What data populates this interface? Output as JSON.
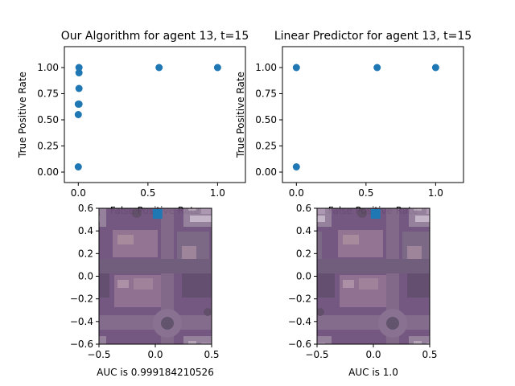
{
  "colors": {
    "marker": "#1f77b4",
    "aerial_tint": "#6e4f7a"
  },
  "chart_data": [
    {
      "type": "scatter",
      "title": "Our Algorithm for agent 13, t=15",
      "xlabel": "False Positive Rate",
      "ylabel": "True Positive Rate",
      "xlim": [
        -0.1,
        1.2
      ],
      "ylim": [
        -0.1,
        1.2
      ],
      "xticks": [
        "0.0",
        "0.5",
        "1.0"
      ],
      "xtick_values": [
        0.0,
        0.5,
        1.0
      ],
      "yticks": [
        "0.00",
        "0.25",
        "0.50",
        "0.75",
        "1.00"
      ],
      "ytick_values": [
        0.0,
        0.25,
        0.5,
        0.75,
        1.0
      ],
      "grid": false,
      "points": [
        {
          "x": 0.0,
          "y": 0.05
        },
        {
          "x": 0.0,
          "y": 0.55
        },
        {
          "x": 0.0,
          "y": 0.65
        },
        {
          "x": 0.005,
          "y": 0.65
        },
        {
          "x": 0.005,
          "y": 0.8
        },
        {
          "x": 0.005,
          "y": 0.95
        },
        {
          "x": 0.005,
          "y": 1.0
        },
        {
          "x": 0.58,
          "y": 1.0
        },
        {
          "x": 1.0,
          "y": 1.0
        }
      ]
    },
    {
      "type": "scatter",
      "title": "Linear Predictor for agent 13, t=15",
      "xlabel": "False Positive Rate",
      "ylabel": "True Positive Rate",
      "xlim": [
        -0.1,
        1.2
      ],
      "ylim": [
        -0.1,
        1.2
      ],
      "xticks": [
        "0.0",
        "0.5",
        "1.0"
      ],
      "xtick_values": [
        0.0,
        0.5,
        1.0
      ],
      "yticks": [
        "0.00",
        "0.25",
        "0.50",
        "0.75",
        "1.00"
      ],
      "ytick_values": [
        0.0,
        0.25,
        0.5,
        0.75,
        1.0
      ],
      "grid": false,
      "points": [
        {
          "x": 0.0,
          "y": 0.05
        },
        {
          "x": 0.0,
          "y": 1.0
        },
        {
          "x": 0.58,
          "y": 1.0
        },
        {
          "x": 1.0,
          "y": 1.0
        }
      ]
    },
    {
      "type": "image",
      "xlabel": "AUC is 0.999184210526",
      "xlim": [
        -0.5,
        0.5
      ],
      "ylim": [
        -0.6,
        0.6
      ],
      "xticks": [
        "−0.5",
        "0.0",
        "0.5"
      ],
      "xtick_values": [
        -0.5,
        0.0,
        0.5
      ],
      "yticks": [
        "−0.6",
        "−0.4",
        "−0.2",
        "0.0",
        "0.2",
        "0.4",
        "0.6"
      ],
      "ytick_values": [
        -0.6,
        -0.4,
        -0.2,
        0.0,
        0.2,
        0.4,
        0.6
      ],
      "marker": {
        "x": 0.02,
        "y": 0.55
      }
    },
    {
      "type": "image",
      "xlabel": "AUC is 1.0",
      "xlim": [
        -0.5,
        0.5
      ],
      "ylim": [
        -0.6,
        0.6
      ],
      "xticks": [
        "−0.5",
        "0.0",
        "0.5"
      ],
      "xtick_values": [
        -0.5,
        0.0,
        0.5
      ],
      "yticks": [
        "−0.6",
        "−0.4",
        "−0.2",
        "0.0",
        "0.2",
        "0.4",
        "0.6"
      ],
      "ytick_values": [
        -0.6,
        -0.4,
        -0.2,
        0.0,
        0.2,
        0.4,
        0.6
      ],
      "marker": {
        "x": 0.02,
        "y": 0.55
      }
    }
  ]
}
